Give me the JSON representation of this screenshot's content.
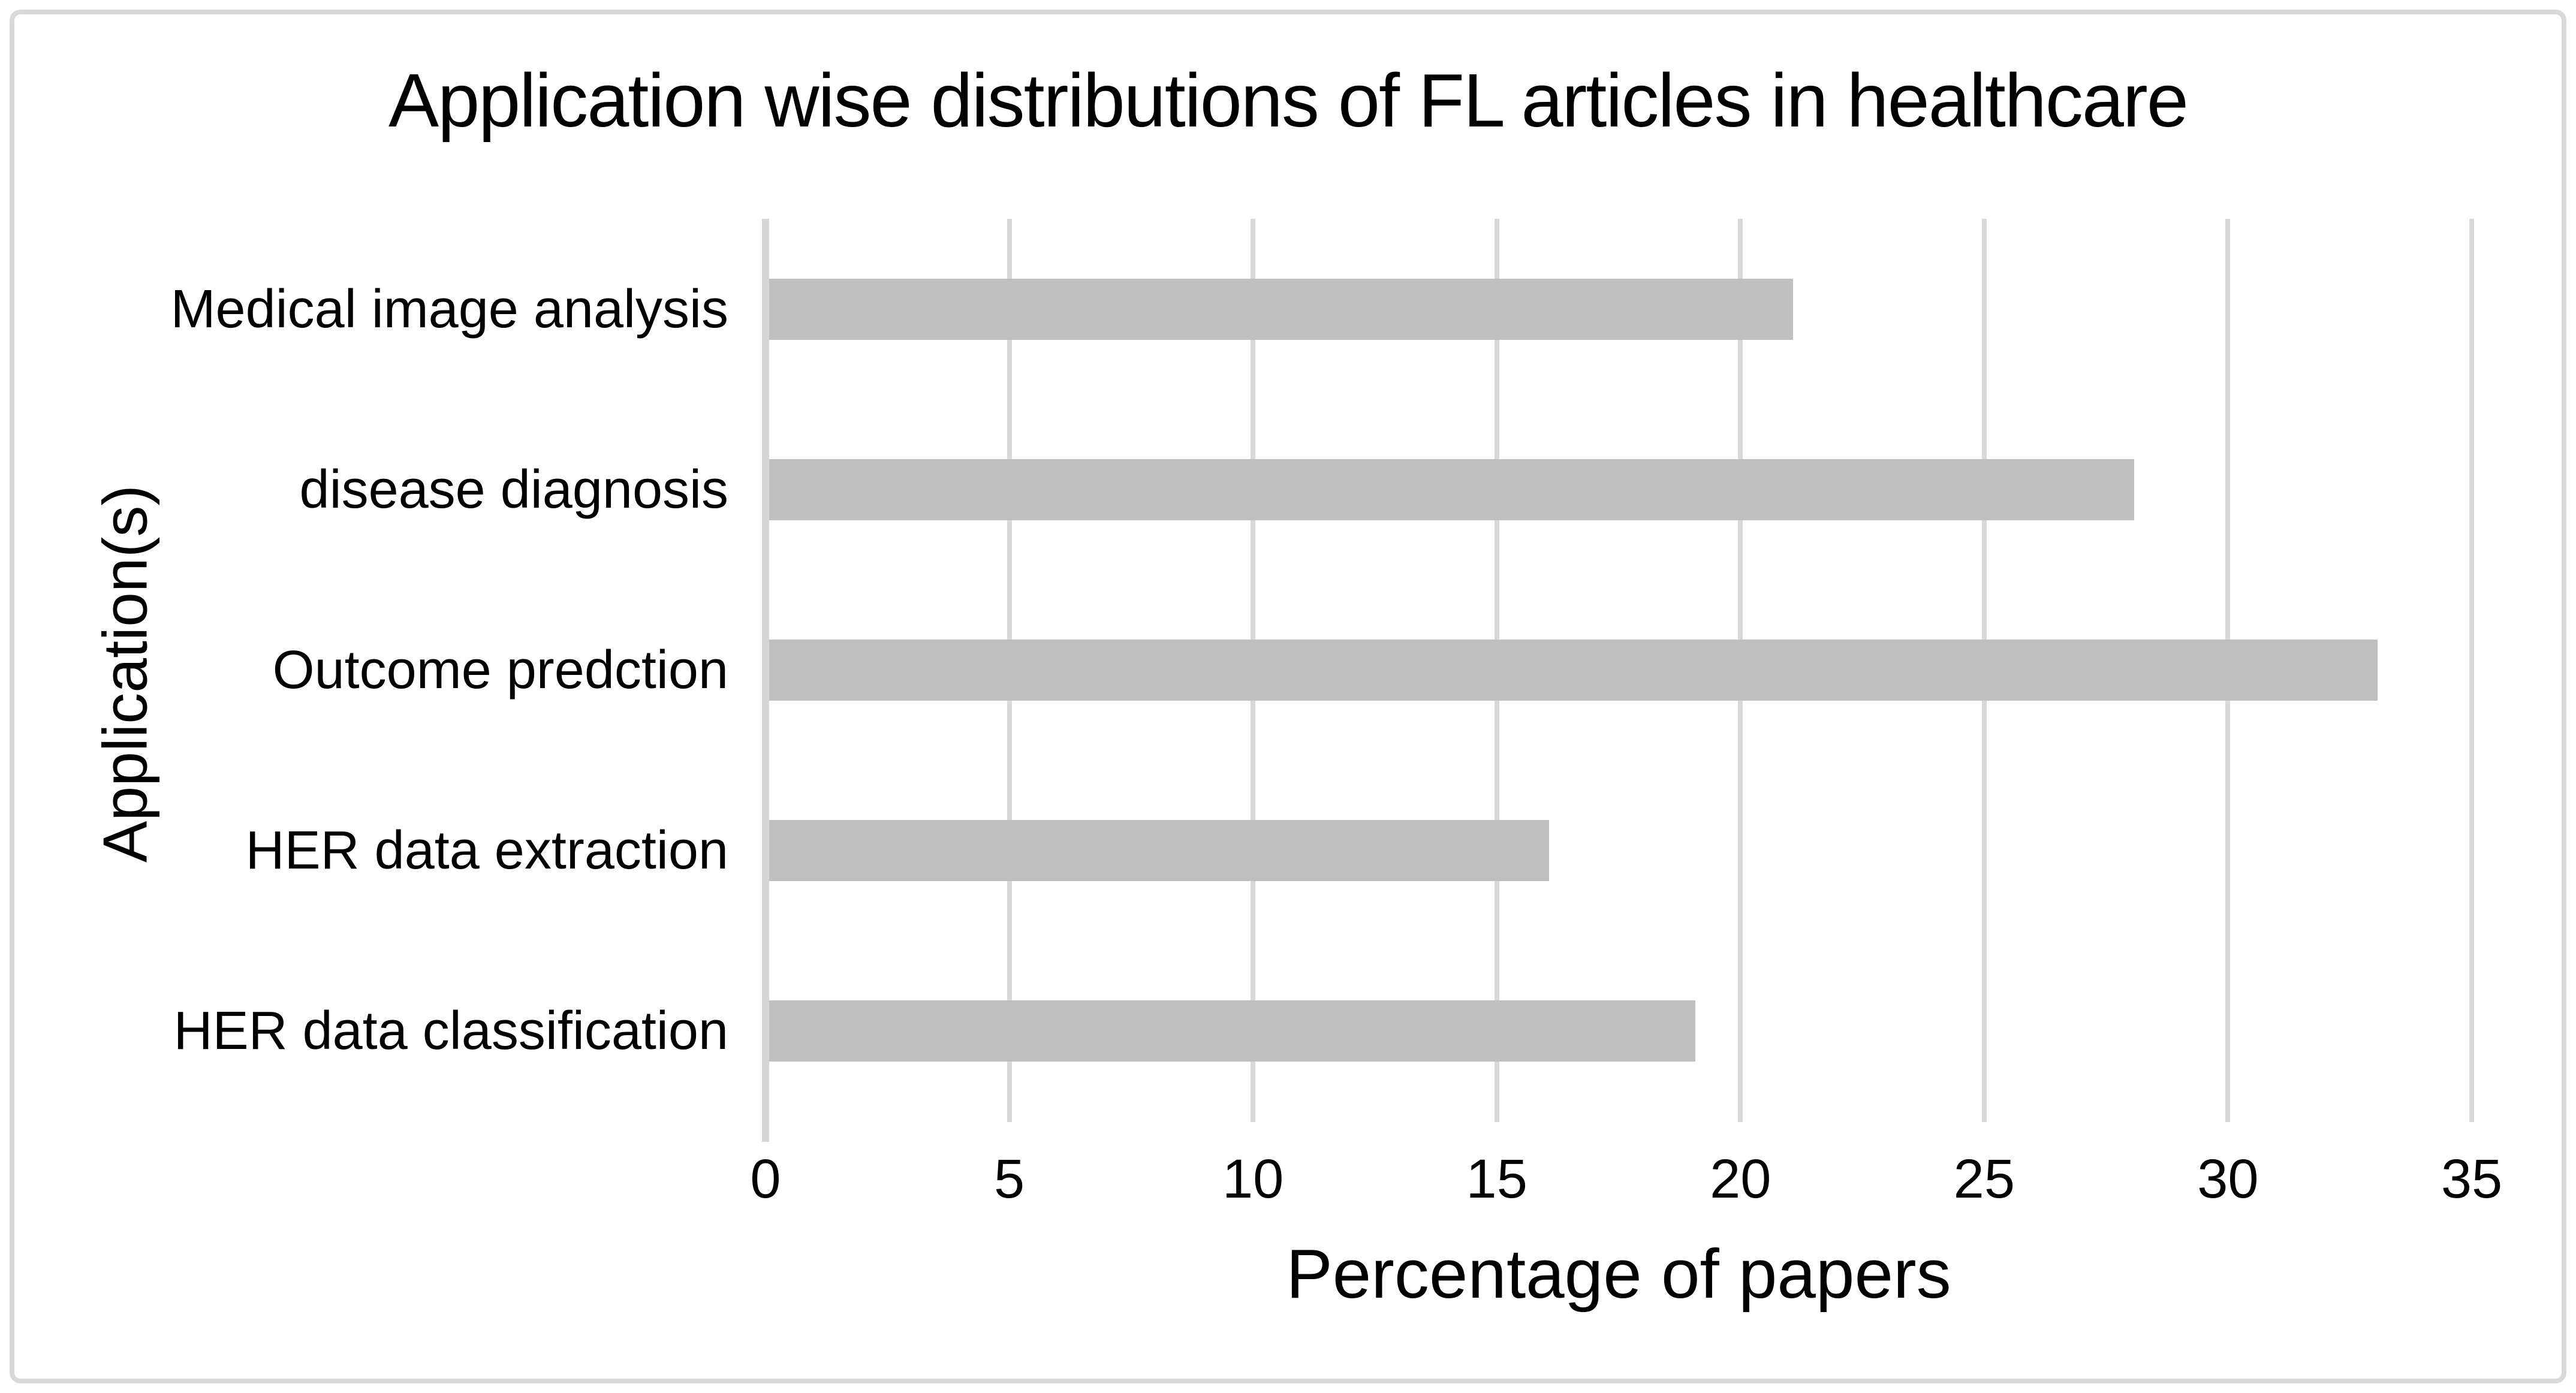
{
  "figure": {
    "background": "#ffffff",
    "border_color": "#d9d9d9",
    "text_color": "#000000"
  },
  "chart_data": {
    "type": "bar",
    "orientation": "horizontal",
    "title": "Application wise distributions of FL articles in healthcare",
    "categories": [
      "Medical image analysis",
      "disease diagnosis",
      "Outcome predction",
      "HER data extraction",
      "HER data classification"
    ],
    "values": [
      21,
      28,
      33,
      16,
      19
    ],
    "xlabel": "Percentage of papers",
    "ylabel": "Application(s)",
    "xlim": [
      0,
      35
    ],
    "xticks": [
      0,
      5,
      10,
      15,
      20,
      25,
      30,
      35
    ],
    "grid": true,
    "legend": false,
    "bar_color": "#bfbfbf",
    "gridline_color": "#d9d9d9",
    "zero_axis_color": "#d6d6d6"
  }
}
